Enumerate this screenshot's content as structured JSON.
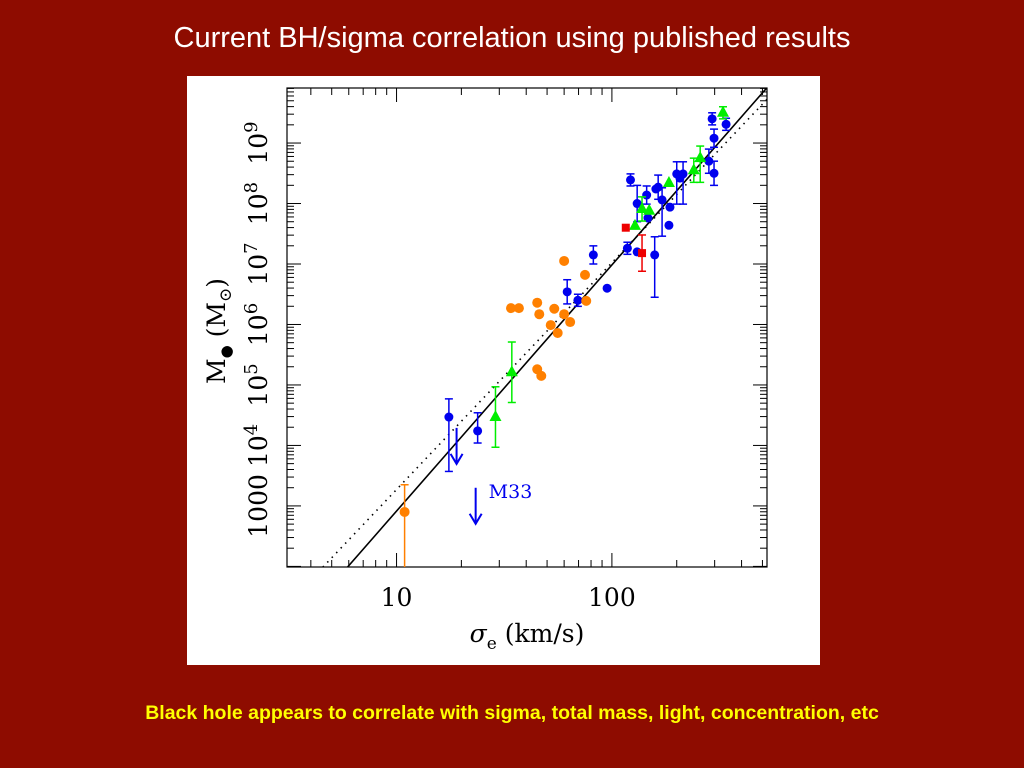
{
  "slide": {
    "title": "Current BH/sigma correlation using published results",
    "caption": "Black hole appears to correlate with sigma, total mass, light, concentration, etc"
  },
  "colors": {
    "background": "#8e0c00",
    "blue": "#0000ee",
    "green": "#00ee00",
    "red": "#ee0000",
    "orange": "#ff8000"
  },
  "chart_data": {
    "type": "scatter",
    "title": "",
    "xlabel": "σ_e (km/s)",
    "ylabel": "M• (M⊙)",
    "xscale": "log",
    "yscale": "log",
    "xlim": [
      3.1,
      525
    ],
    "ylim_log10": [
      1.99,
      9.91
    ],
    "x_ticks": [
      {
        "value": 10,
        "label": "10"
      },
      {
        "value": 100,
        "label": "100"
      }
    ],
    "y_ticks": [
      {
        "log10": 3,
        "base": "1000",
        "exp": ""
      },
      {
        "log10": 4,
        "base": "10",
        "exp": "4"
      },
      {
        "log10": 5,
        "base": "10",
        "exp": "5"
      },
      {
        "log10": 6,
        "base": "10",
        "exp": "6"
      },
      {
        "log10": 7,
        "base": "10",
        "exp": "7"
      },
      {
        "log10": 8,
        "base": "10",
        "exp": "8"
      },
      {
        "log10": 9,
        "base": "10",
        "exp": "9"
      }
    ],
    "series": [
      {
        "name": "blue-circles",
        "marker": "circle",
        "color": "#0000ee",
        "points": [
          {
            "sigma": 17.5,
            "logM": 4.47,
            "err": [
              0.9,
              0.3
            ]
          },
          {
            "sigma": 23.8,
            "logM": 4.24,
            "err": [
              0.2,
              0.3
            ]
          },
          {
            "sigma": 62,
            "logM": 6.54,
            "err": [
              0.2,
              0.2
            ]
          },
          {
            "sigma": 69.5,
            "logM": 6.4,
            "err": [
              0.1,
              0.1
            ]
          },
          {
            "sigma": 82,
            "logM": 7.15,
            "err": [
              0.15,
              0.15
            ]
          },
          {
            "sigma": 95,
            "logM": 6.6
          },
          {
            "sigma": 118,
            "logM": 7.26,
            "err": [
              0.1,
              0.1
            ]
          },
          {
            "sigma": 131,
            "logM": 7.2
          },
          {
            "sigma": 158,
            "logM": 7.15,
            "err": [
              0.7,
              0.3
            ]
          },
          {
            "sigma": 122,
            "logM": 8.39,
            "err": [
              0.1,
              0.1
            ]
          },
          {
            "sigma": 131,
            "logM": 8.0,
            "err": [
              0.3,
              0.3
            ]
          },
          {
            "sigma": 145,
            "logM": 8.14,
            "err": [
              0.15,
              0.15
            ]
          },
          {
            "sigma": 147,
            "logM": 7.76
          },
          {
            "sigma": 160,
            "logM": 8.24
          },
          {
            "sigma": 164,
            "logM": 8.27,
            "err": [
              0.2,
              0.2
            ]
          },
          {
            "sigma": 171,
            "logM": 8.06,
            "err": [
              0.6,
              0.2
            ]
          },
          {
            "sigma": 184,
            "logM": 7.64
          },
          {
            "sigma": 186,
            "logM": 7.94
          },
          {
            "sigma": 200,
            "logM": 8.49,
            "err": [
              0.5,
              0.2
            ]
          },
          {
            "sigma": 214,
            "logM": 8.49,
            "err": [
              0.5,
              0.2
            ]
          },
          {
            "sigma": 207,
            "logM": 8.42
          },
          {
            "sigma": 282,
            "logM": 8.7,
            "err": [
              0.2,
              0.2
            ]
          },
          {
            "sigma": 298,
            "logM": 8.5,
            "err": [
              0.2,
              0.2
            ]
          },
          {
            "sigma": 298,
            "logM": 9.08,
            "err": [
              0.15,
              0.15
            ]
          },
          {
            "sigma": 292,
            "logM": 9.4,
            "err": [
              0.1,
              0.1
            ]
          },
          {
            "sigma": 339,
            "logM": 9.31,
            "err": [
              0.1,
              0.1
            ]
          }
        ]
      },
      {
        "name": "green-triangles",
        "marker": "triangle",
        "color": "#00ee00",
        "points": [
          {
            "sigma": 28.8,
            "logM": 4.47,
            "err": [
              0.5,
              0.5
            ]
          },
          {
            "sigma": 34.3,
            "logM": 5.21,
            "err": [
              0.5,
              0.5
            ]
          },
          {
            "sigma": 128,
            "logM": 7.63
          },
          {
            "sigma": 138,
            "logM": 7.91,
            "err": [
              0.2,
              0.2
            ]
          },
          {
            "sigma": 149,
            "logM": 7.88
          },
          {
            "sigma": 184,
            "logM": 8.34
          },
          {
            "sigma": 240,
            "logM": 8.55,
            "err": [
              0.2,
              0.2
            ]
          },
          {
            "sigma": 257,
            "logM": 8.75,
            "err": [
              0.4,
              0.2
            ]
          },
          {
            "sigma": 328,
            "logM": 9.5,
            "err": [
              0.1,
              0.1
            ]
          }
        ]
      },
      {
        "name": "red-squares",
        "marker": "square",
        "color": "#ee0000",
        "points": [
          {
            "sigma": 116,
            "logM": 7.6
          },
          {
            "sigma": 138,
            "logM": 7.18,
            "err": [
              0.3,
              0.3
            ]
          }
        ]
      },
      {
        "name": "orange-circles",
        "marker": "circle",
        "color": "#ff8000",
        "points": [
          {
            "sigma": 10.9,
            "logM": 2.9,
            "err": [
              1.5,
              0.45
            ]
          },
          {
            "sigma": 60,
            "logM": 7.05
          },
          {
            "sigma": 75,
            "logM": 6.82
          },
          {
            "sigma": 34,
            "logM": 6.27
          },
          {
            "sigma": 37,
            "logM": 6.27
          },
          {
            "sigma": 45,
            "logM": 6.36
          },
          {
            "sigma": 46,
            "logM": 6.17
          },
          {
            "sigma": 54,
            "logM": 6.26
          },
          {
            "sigma": 60,
            "logM": 6.17
          },
          {
            "sigma": 64,
            "logM": 6.04
          },
          {
            "sigma": 52,
            "logM": 5.99
          },
          {
            "sigma": 56,
            "logM": 5.86
          },
          {
            "sigma": 76,
            "logM": 6.39
          },
          {
            "sigma": 45,
            "logM": 5.26
          },
          {
            "sigma": 47,
            "logM": 5.15
          }
        ]
      }
    ],
    "upper_limits": [
      {
        "sigma": 19,
        "logM": 4.29,
        "color": "#0000ee"
      },
      {
        "sigma": 23.3,
        "logM": 3.3,
        "color": "#0000ee",
        "label": "M33"
      }
    ],
    "fits": [
      {
        "name": "solid-fit",
        "style": "solid",
        "slope": 4.07,
        "logM_at_200": 8.21
      },
      {
        "name": "dotted-fit",
        "style": "dotted",
        "slope": 3.75,
        "logM_at_200": 8.15
      }
    ]
  }
}
